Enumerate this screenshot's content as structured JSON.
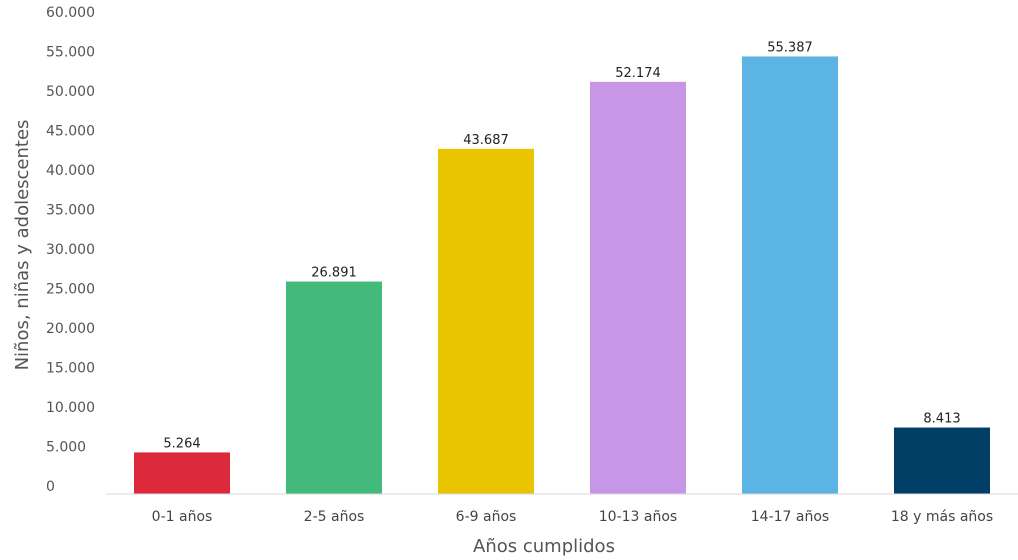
{
  "chart_data": {
    "type": "bar",
    "categories": [
      "0-1 años",
      "2-5 años",
      "6-9 años",
      "10-13 años",
      "14-17 años",
      "18 y más años"
    ],
    "values": [
      5264,
      26891,
      43687,
      52174,
      55387,
      8413
    ],
    "value_labels": [
      "5.264",
      "26.891",
      "43.687",
      "52.174",
      "55.387",
      "8.413"
    ],
    "colors": [
      "#dc2a3c",
      "#43b97a",
      "#e9c400",
      "#c896e6",
      "#5cb4e4",
      "#013f66"
    ],
    "xlabel": "Años cumplidos",
    "ylabel": "Niños, niñas y adolescentes",
    "ylim": [
      0,
      60000
    ],
    "yticks": [
      0,
      5000,
      10000,
      15000,
      20000,
      25000,
      30000,
      35000,
      40000,
      45000,
      50000,
      55000,
      60000
    ],
    "ytick_labels": [
      "0",
      "5.000",
      "10.000",
      "15.000",
      "20.000",
      "25.000",
      "30.000",
      "35.000",
      "40.000",
      "45.000",
      "50.000",
      "55.000",
      "60.000"
    ],
    "grid": false,
    "legend": "none"
  }
}
